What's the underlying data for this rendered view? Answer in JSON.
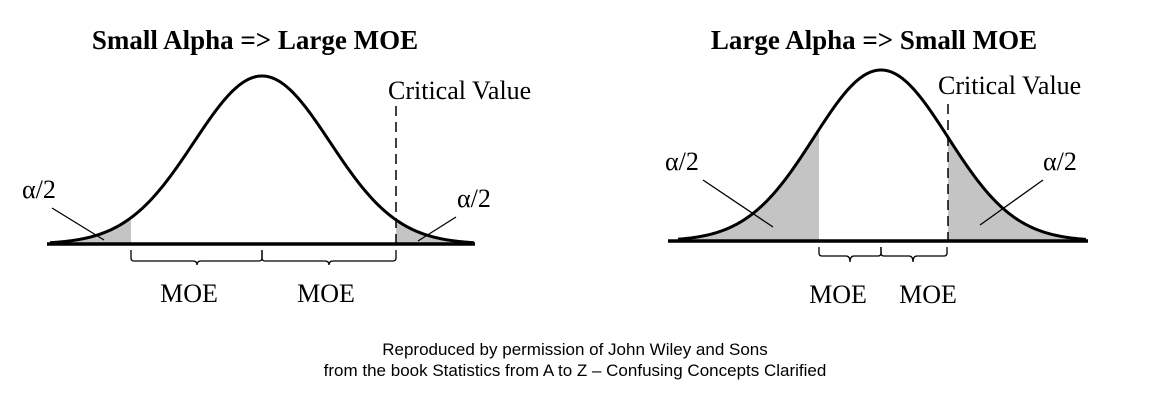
{
  "left_panel": {
    "title": "Small Alpha => Large MOE",
    "critical_value_label": "Critical Value",
    "left_tail_label": "α/2",
    "right_tail_label": "α/2",
    "moe_left_label": "MOE",
    "moe_right_label": "MOE"
  },
  "right_panel": {
    "title": "Large Alpha => Small MOE",
    "critical_value_label": "Critical Value",
    "left_tail_label": "α/2",
    "right_tail_label": "α/2",
    "moe_left_label": "MOE",
    "moe_right_label": "MOE"
  },
  "credit": {
    "line1": "Reproduced by permission of John Wiley and Sons",
    "line2": "from the book Statistics from A to Z – Confusing Concepts Clarified"
  }
}
